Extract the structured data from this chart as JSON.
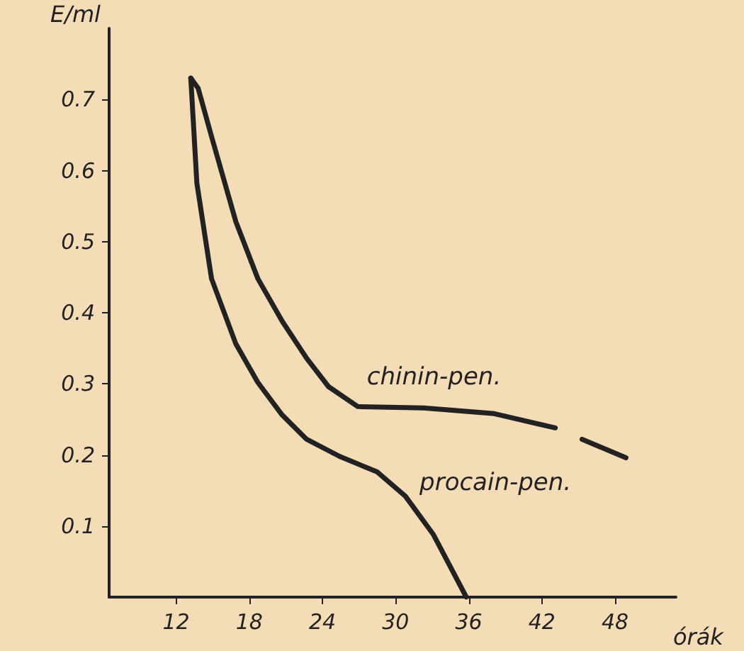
{
  "chart_data": {
    "type": "line",
    "xlabel": "órák",
    "ylabel": "E/ml",
    "legend": false,
    "grid": false,
    "marker": "none",
    "line_style": "solid",
    "xlim": [
      6.5,
      53
    ],
    "xticks": [
      12,
      18,
      24,
      30,
      36,
      42,
      48
    ],
    "ylim": [
      0,
      0.8
    ],
    "yticks": [
      0.1,
      0.2,
      0.3,
      0.4,
      0.5,
      0.6,
      0.7
    ],
    "series": [
      {
        "name": "chinin-pen.",
        "color": "#222222",
        "x": [
          13.2,
          13.8,
          14.9,
          16.9,
          18.7,
          20.7,
          22.7,
          24.5,
          26.9,
          32.3,
          38.1,
          43.1,
          44.2,
          45.3,
          48.9
        ],
        "values": [
          0.73,
          0.716,
          0.648,
          0.528,
          0.448,
          0.388,
          0.336,
          0.296,
          0.268,
          0.266,
          0.258,
          0.238,
          null,
          0.222,
          0.196
        ]
      },
      {
        "name": "procain-pen.",
        "color": "#222222",
        "x": [
          13.2,
          13.7,
          14.9,
          16.9,
          18.7,
          20.7,
          22.7,
          25.4,
          28.5,
          30.8,
          33.1,
          35.8
        ],
        "values": [
          0.73,
          0.582,
          0.448,
          0.356,
          0.302,
          0.256,
          0.222,
          0.198,
          0.176,
          0.142,
          0.088,
          0
        ]
      }
    ]
  }
}
